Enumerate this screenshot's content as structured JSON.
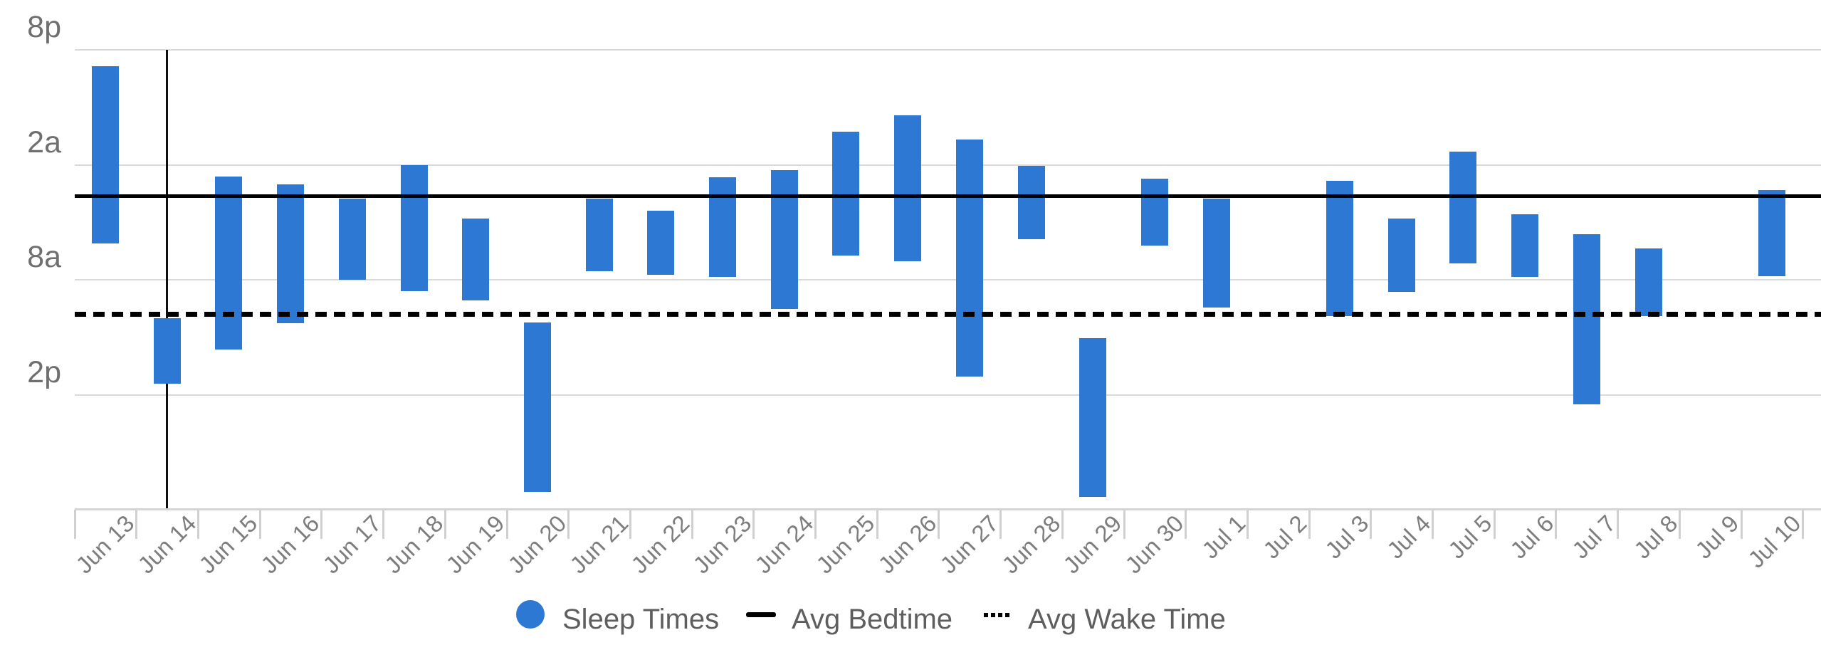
{
  "chart_data": {
    "type": "bar",
    "variant": "floating-range-columns-vertical-time",
    "title": "",
    "x_categories": [
      "Jun 13",
      "Jun 14",
      "Jun 15",
      "Jun 16",
      "Jun 17",
      "Jun 18",
      "Jun 19",
      "Jun 20",
      "Jun 21",
      "Jun 22",
      "Jun 23",
      "Jun 24",
      "Jun 25",
      "Jun 26",
      "Jun 27",
      "Jun 28",
      "Jun 29",
      "Jun 30",
      "Jul 1",
      "Jul 2",
      "Jul 3",
      "Jul 4",
      "Jul 5",
      "Jul 6",
      "Jul 7",
      "Jul 8",
      "Jul 9",
      "Jul 10"
    ],
    "y_axis": {
      "tick_labels": [
        "8p",
        "2a",
        "8a",
        "2p"
      ],
      "tick_hours_from_8pm": [
        0,
        6,
        12,
        18
      ],
      "axis_top_time": "8:00 PM",
      "visible_span_hours": 23.9,
      "direction": "time flows downward",
      "grid": true
    },
    "series": [
      {
        "name": "Sleep Times",
        "kind": "range-bar",
        "color": "#2d78d2",
        "unit": "hours after 8:00 PM",
        "points": [
          {
            "date": "Jun 13",
            "start": 0.85,
            "end": 10.08,
            "start_time": "8:51 PM",
            "end_time": "6:05 AM"
          },
          {
            "date": "Jun 14",
            "start": 14.0,
            "end": 17.42,
            "start_time": "10:00 AM",
            "end_time": "1:25 PM"
          },
          {
            "date": "Jun 15",
            "start": 6.6,
            "end": 15.63,
            "start_time": "2:36 AM",
            "end_time": "11:38 AM"
          },
          {
            "date": "Jun 16",
            "start": 7.0,
            "end": 14.27,
            "start_time": "3:00 AM",
            "end_time": "10:16 AM"
          },
          {
            "date": "Jun 17",
            "start": 7.75,
            "end": 11.97,
            "start_time": "3:45 AM",
            "end_time": "7:58 AM"
          },
          {
            "date": "Jun 18",
            "start": 6.0,
            "end": 12.57,
            "start_time": "2:00 AM",
            "end_time": "8:34 AM"
          },
          {
            "date": "Jun 19",
            "start": 8.78,
            "end": 13.08,
            "start_time": "4:47 AM",
            "end_time": "9:05 AM"
          },
          {
            "date": "Jun 20",
            "start": 14.23,
            "end": 23.03,
            "start_time": "10:14 AM",
            "end_time": "7:02 PM"
          },
          {
            "date": "Jun 21",
            "start": 7.75,
            "end": 11.53,
            "start_time": "3:45 AM",
            "end_time": "7:32 AM"
          },
          {
            "date": "Jun 22",
            "start": 8.4,
            "end": 11.72,
            "start_time": "4:24 AM",
            "end_time": "7:43 AM"
          },
          {
            "date": "Jun 23",
            "start": 6.65,
            "end": 11.85,
            "start_time": "2:39 AM",
            "end_time": "7:51 AM"
          },
          {
            "date": "Jun 24",
            "start": 6.27,
            "end": 13.5,
            "start_time": "2:16 AM",
            "end_time": "9:30 AM"
          },
          {
            "date": "Jun 25",
            "start": 4.27,
            "end": 10.73,
            "start_time": "12:16 AM",
            "end_time": "6:44 AM"
          },
          {
            "date": "Jun 26",
            "start": 3.4,
            "end": 11.03,
            "start_time": "11:24 PM",
            "end_time": "7:02 AM"
          },
          {
            "date": "Jun 27",
            "start": 4.68,
            "end": 17.03,
            "start_time": "12:41 AM",
            "end_time": "1:02 PM"
          },
          {
            "date": "Jun 28",
            "start": 6.05,
            "end": 9.88,
            "start_time": "2:03 AM",
            "end_time": "5:53 AM"
          },
          {
            "date": "Jun 29",
            "start": 15.03,
            "end": 23.3,
            "start_time": "11:02 AM",
            "end_time": "7:18 PM"
          },
          {
            "date": "Jun 30",
            "start": 6.73,
            "end": 10.22,
            "start_time": "2:44 AM",
            "end_time": "6:13 AM"
          },
          {
            "date": "Jul 1",
            "start": 7.75,
            "end": 13.42,
            "start_time": "3:45 AM",
            "end_time": "9:25 AM"
          },
          {
            "date": "Jul 3",
            "start": 6.82,
            "end": 13.88,
            "start_time": "2:49 AM",
            "end_time": "9:53 AM"
          },
          {
            "date": "Jul 4",
            "start": 8.78,
            "end": 12.62,
            "start_time": "4:47 AM",
            "end_time": "8:37 AM"
          },
          {
            "date": "Jul 5",
            "start": 5.32,
            "end": 11.12,
            "start_time": "1:19 AM",
            "end_time": "7:07 AM"
          },
          {
            "date": "Jul 6",
            "start": 8.57,
            "end": 11.85,
            "start_time": "4:34 AM",
            "end_time": "7:51 AM"
          },
          {
            "date": "Jul 7",
            "start": 9.63,
            "end": 18.48,
            "start_time": "5:38 AM",
            "end_time": "2:29 PM"
          },
          {
            "date": "Jul 8",
            "start": 10.35,
            "end": 13.88,
            "start_time": "6:21 AM",
            "end_time": "9:53 AM"
          },
          {
            "date": "Jul 10",
            "start": 7.33,
            "end": 11.81,
            "start_time": "3:20 AM",
            "end_time": "7:49 AM"
          }
        ]
      },
      {
        "name": "Avg Bedtime",
        "kind": "solid-horizontal-line",
        "color": "#000000",
        "hours_from_8pm": 7.63,
        "time": "3:38 AM"
      },
      {
        "name": "Avg Wake Time",
        "kind": "dotted-horizontal-line",
        "color": "#000000",
        "hours_from_8pm": 13.78,
        "time": "9:47 AM"
      }
    ],
    "no_data_dates": [
      "Jul 2",
      "Jul 9"
    ],
    "selected_day_marker": {
      "date": "Jun 14"
    },
    "legend": {
      "position": "bottom",
      "items": [
        {
          "label": "Sleep Times",
          "marker": "circle",
          "color": "#2d78d2"
        },
        {
          "label": "Avg Bedtime",
          "marker": "solid-line",
          "color": "#000000"
        },
        {
          "label": "Avg Wake Time",
          "marker": "dotted-line",
          "color": "#000000"
        }
      ]
    }
  },
  "colors": {
    "bar_blue": "#2d78d2",
    "gridline": "#d9d9d9",
    "axis_baseline": "#d5d5d5",
    "tick_mark": "#d0d0d0",
    "y_axis_label_text": "#6f6f6f",
    "x_axis_label_text": "#7d7d7d",
    "legend_text": "#5e5e5e",
    "avg_line": "#000000",
    "day_marker_line": "#0f0f0f",
    "background": "#ffffff"
  }
}
